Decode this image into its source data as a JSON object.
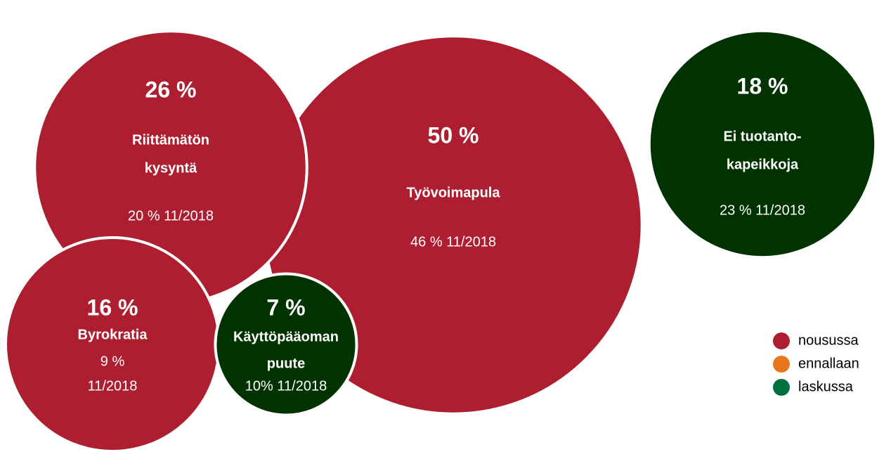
{
  "chart_data": {
    "type": "bubble",
    "categories": [
      [
        "Riittämätön",
        "kysyntä"
      ],
      [
        "Työvoimapula"
      ],
      [
        "Ei tuotanto-",
        "kapeikkoja"
      ],
      [
        "Byrokratia"
      ],
      [
        "Käyttöpääoman",
        "puute"
      ]
    ],
    "values": [
      26,
      50,
      18,
      16,
      7
    ],
    "value_labels": [
      "26 %",
      "50 %",
      "18 %",
      "16 %",
      "7 %"
    ],
    "previous": [
      [
        "20 % 11/2018"
      ],
      [
        "46 % 11/2018"
      ],
      [
        "23 % 11/2018"
      ],
      [
        "9 %",
        "11/2018"
      ],
      [
        "10% 11/2018"
      ]
    ],
    "colors": [
      "#ad1f30",
      "#ad1f30",
      "#003300",
      "#ad1f30",
      "#003300"
    ],
    "legend": [
      {
        "name": "nousussa",
        "color": "#ad1f30"
      },
      {
        "name": "ennallaan",
        "color": "#e8761b"
      },
      {
        "name": "laskussa",
        "color": "#007040"
      }
    ]
  }
}
